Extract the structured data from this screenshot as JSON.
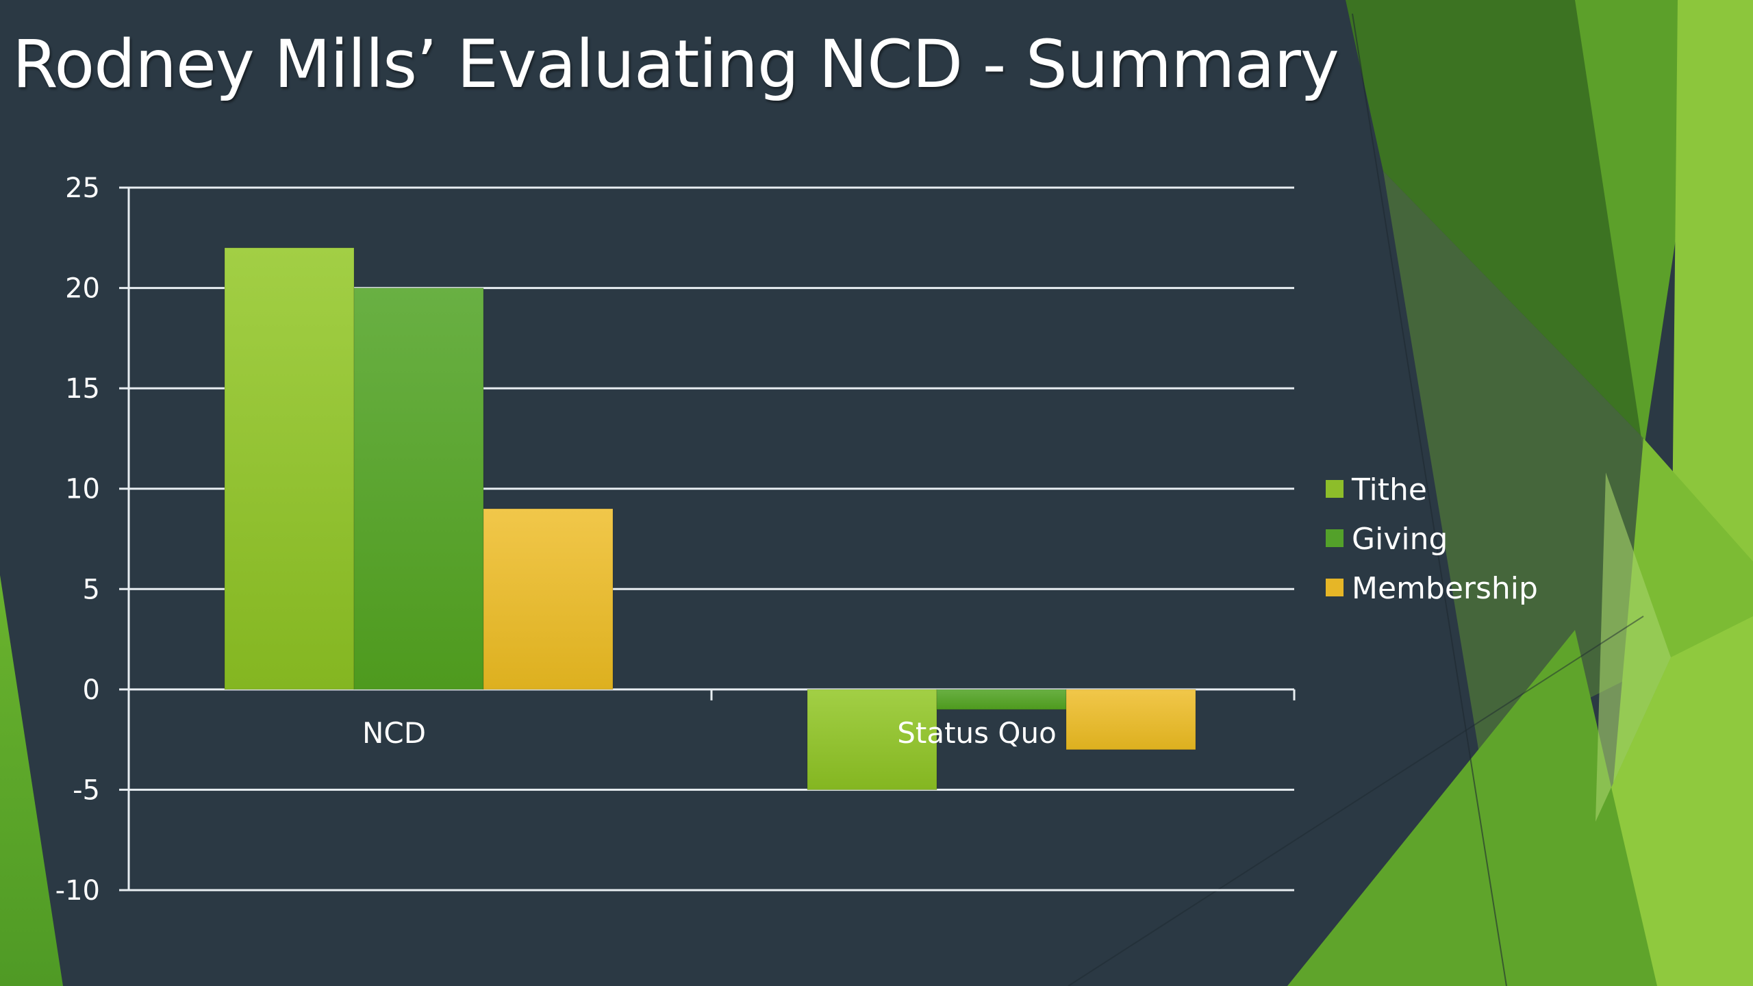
{
  "slide": {
    "title": "Rodney Mills’ Evaluating NCD - Summary"
  },
  "colors": {
    "background": "#2b3944",
    "tithe": "#8dbd2a",
    "giving": "#53a12a",
    "membership": "#e6b627",
    "gridline": "#e8eef2"
  },
  "chart_data": {
    "type": "bar",
    "title": "",
    "xlabel": "",
    "ylabel": "",
    "categories": [
      "NCD",
      "Status Quo"
    ],
    "series": [
      {
        "name": "Tithe",
        "values": [
          22,
          -5
        ]
      },
      {
        "name": "Giving",
        "values": [
          20,
          -1
        ]
      },
      {
        "name": "Membership",
        "values": [
          9,
          -3
        ]
      }
    ],
    "ylim": [
      -10,
      25
    ],
    "yticks": [
      25,
      20,
      15,
      10,
      5,
      0,
      -5,
      -10
    ],
    "ytick_labels": [
      "25",
      "20",
      "15",
      "10",
      "5",
      "0",
      "-5",
      "-10"
    ],
    "grid": true,
    "legend_position": "right"
  }
}
